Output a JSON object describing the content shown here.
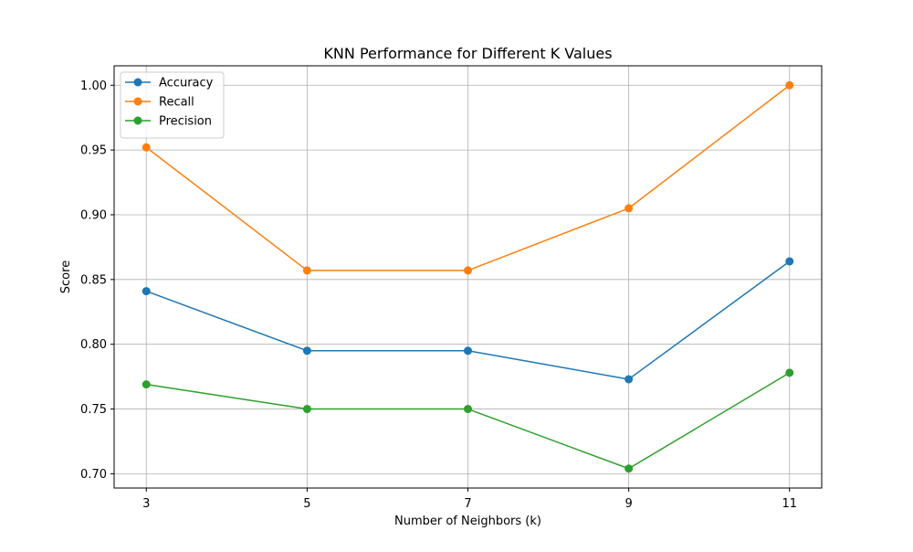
{
  "chart_data": {
    "type": "line",
    "title": "KNN Performance for Different K Values",
    "xlabel": "Number of Neighbors (k)",
    "ylabel": "Score",
    "x": [
      3,
      5,
      7,
      9,
      11
    ],
    "xticks": [
      "3",
      "5",
      "7",
      "9",
      "11"
    ],
    "yticks": [
      "0.70",
      "0.75",
      "0.80",
      "0.85",
      "0.90",
      "0.95",
      "1.00"
    ],
    "xlim": [
      2.6,
      11.4
    ],
    "ylim": [
      0.689,
      1.015
    ],
    "grid": true,
    "legend_position": "top-left",
    "series": [
      {
        "name": "Accuracy",
        "color": "#1f77b4",
        "values": [
          0.841,
          0.795,
          0.795,
          0.773,
          0.864
        ]
      },
      {
        "name": "Recall",
        "color": "#ff7f0e",
        "values": [
          0.952,
          0.857,
          0.857,
          0.905,
          1.0
        ]
      },
      {
        "name": "Precision",
        "color": "#2ca02c",
        "values": [
          0.769,
          0.75,
          0.75,
          0.704,
          0.778
        ]
      }
    ]
  }
}
